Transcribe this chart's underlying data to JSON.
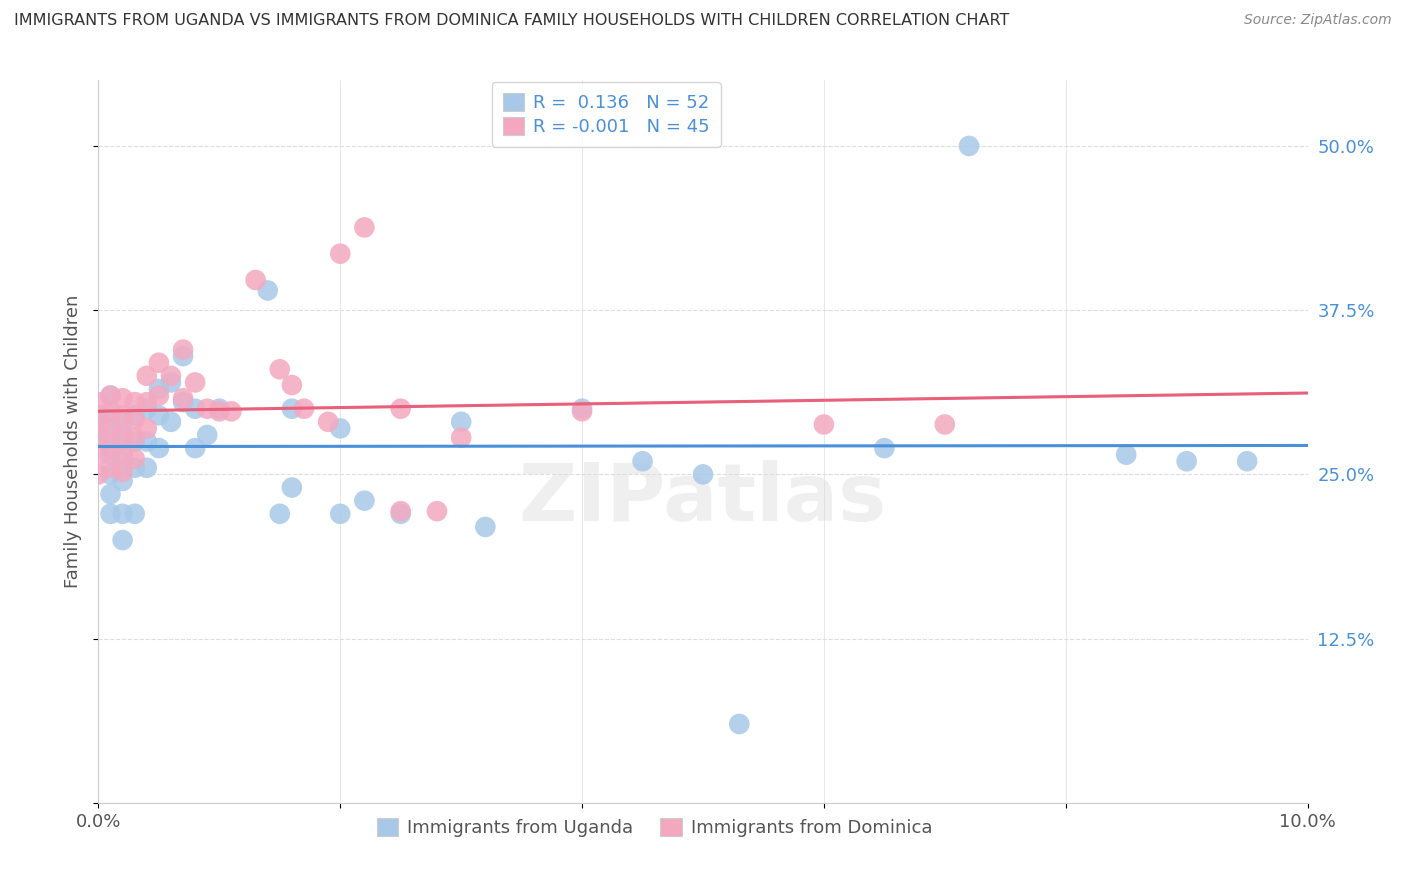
{
  "title": "IMMIGRANTS FROM UGANDA VS IMMIGRANTS FROM DOMINICA FAMILY HOUSEHOLDS WITH CHILDREN CORRELATION CHART",
  "source": "Source: ZipAtlas.com",
  "ylabel": "Family Households with Children",
  "xlim": [
    0.0,
    0.1
  ],
  "ylim": [
    0.0,
    0.55
  ],
  "x_ticks": [
    0.0,
    0.02,
    0.04,
    0.06,
    0.08,
    0.1
  ],
  "x_tick_labels": [
    "0.0%",
    "",
    "",
    "",
    "",
    "10.0%"
  ],
  "y_ticks": [
    0.0,
    0.125,
    0.25,
    0.375,
    0.5
  ],
  "y_tick_labels": [
    "",
    "12.5%",
    "25.0%",
    "37.5%",
    "50.0%"
  ],
  "r_uganda": 0.136,
  "n_uganda": 52,
  "r_dominica": -0.001,
  "n_dominica": 45,
  "color_uganda": "#a8c8e8",
  "color_dominica": "#f4a8c0",
  "line_color_uganda": "#4a90d9",
  "line_color_dominica": "#e8607a",
  "watermark": "ZIPatlas",
  "grid_color": "#dddddd",
  "uganda_x": [
    0.0,
    0.0,
    0.001,
    0.001,
    0.001,
    0.001,
    0.001,
    0.001,
    0.001,
    0.002,
    0.002,
    0.002,
    0.002,
    0.002,
    0.002,
    0.003,
    0.003,
    0.003,
    0.003,
    0.004,
    0.004,
    0.004,
    0.005,
    0.005,
    0.005,
    0.006,
    0.006,
    0.007,
    0.007,
    0.008,
    0.008,
    0.009,
    0.01,
    0.014,
    0.015,
    0.016,
    0.016,
    0.02,
    0.02,
    0.022,
    0.025,
    0.03,
    0.032,
    0.04,
    0.045,
    0.05,
    0.053,
    0.065,
    0.072,
    0.085,
    0.09,
    0.095
  ],
  "uganda_y": [
    0.295,
    0.28,
    0.31,
    0.295,
    0.28,
    0.265,
    0.25,
    0.235,
    0.22,
    0.29,
    0.275,
    0.26,
    0.245,
    0.22,
    0.2,
    0.295,
    0.275,
    0.255,
    0.22,
    0.3,
    0.275,
    0.255,
    0.315,
    0.295,
    0.27,
    0.32,
    0.29,
    0.34,
    0.305,
    0.3,
    0.27,
    0.28,
    0.3,
    0.39,
    0.22,
    0.24,
    0.3,
    0.285,
    0.22,
    0.23,
    0.22,
    0.29,
    0.21,
    0.3,
    0.26,
    0.25,
    0.06,
    0.27,
    0.5,
    0.265,
    0.26,
    0.26
  ],
  "dominica_x": [
    0.0,
    0.0,
    0.0,
    0.0,
    0.0,
    0.001,
    0.001,
    0.001,
    0.001,
    0.001,
    0.002,
    0.002,
    0.002,
    0.002,
    0.002,
    0.003,
    0.003,
    0.003,
    0.003,
    0.004,
    0.004,
    0.004,
    0.005,
    0.005,
    0.006,
    0.007,
    0.007,
    0.008,
    0.009,
    0.01,
    0.011,
    0.013,
    0.015,
    0.016,
    0.017,
    0.019,
    0.02,
    0.022,
    0.025,
    0.025,
    0.028,
    0.03,
    0.04,
    0.06,
    0.07
  ],
  "dominica_y": [
    0.305,
    0.29,
    0.278,
    0.265,
    0.25,
    0.31,
    0.298,
    0.285,
    0.27,
    0.255,
    0.308,
    0.295,
    0.28,
    0.265,
    0.252,
    0.305,
    0.292,
    0.278,
    0.262,
    0.325,
    0.305,
    0.285,
    0.335,
    0.31,
    0.325,
    0.345,
    0.308,
    0.32,
    0.3,
    0.298,
    0.298,
    0.398,
    0.33,
    0.318,
    0.3,
    0.29,
    0.418,
    0.438,
    0.3,
    0.222,
    0.222,
    0.278,
    0.298,
    0.288,
    0.288
  ]
}
